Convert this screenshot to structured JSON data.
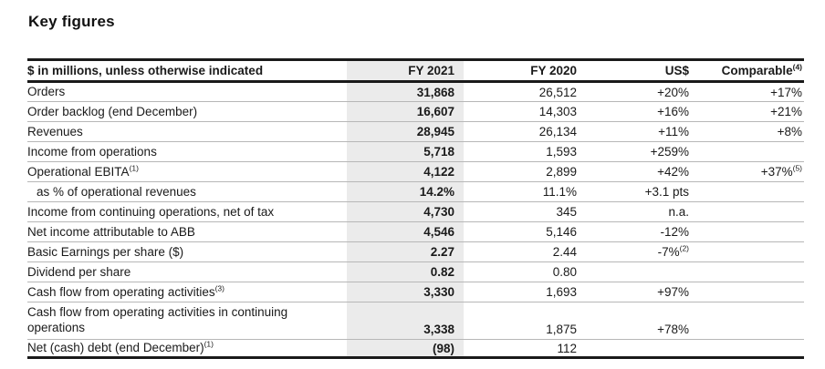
{
  "title": "Key figures",
  "colors": {
    "text": "#1a1a1a",
    "column_highlight": "#ebebeb",
    "row_separator": "#b7b7b7",
    "table_border": "#1a1a1a",
    "background": "#ffffff"
  },
  "table": {
    "unit_note": "$ in millions, unless otherwise indicated",
    "columns": {
      "fy2021": "FY 2021",
      "fy2020": "FY 2020",
      "usd_change": "US$",
      "comparable_change": "Comparable",
      "comparable_footnote": "(4)"
    },
    "rows": [
      {
        "label": "Orders",
        "label_footnote": "",
        "fy2021": "31,868",
        "fy2020": "26,512",
        "usd": "+20%",
        "usd_footnote": "",
        "comparable": "+17%",
        "comparable_footnote": "",
        "indent": false,
        "two_line": false
      },
      {
        "label": "Order backlog (end December)",
        "label_footnote": "",
        "fy2021": "16,607",
        "fy2020": "14,303",
        "usd": "+16%",
        "usd_footnote": "",
        "comparable": "+21%",
        "comparable_footnote": "",
        "indent": false,
        "two_line": false
      },
      {
        "label": "Revenues",
        "label_footnote": "",
        "fy2021": "28,945",
        "fy2020": "26,134",
        "usd": "+11%",
        "usd_footnote": "",
        "comparable": "+8%",
        "comparable_footnote": "",
        "indent": false,
        "two_line": false
      },
      {
        "label": "Income from operations",
        "label_footnote": "",
        "fy2021": "5,718",
        "fy2020": "1,593",
        "usd": "+259%",
        "usd_footnote": "",
        "comparable": "",
        "comparable_footnote": "",
        "indent": false,
        "two_line": false
      },
      {
        "label": "Operational EBITA",
        "label_footnote": "(1)",
        "fy2021": "4,122",
        "fy2020": "2,899",
        "usd": "+42%",
        "usd_footnote": "",
        "comparable": "+37%",
        "comparable_footnote": "(5)",
        "indent": false,
        "two_line": false
      },
      {
        "label": "as % of operational revenues",
        "label_footnote": "",
        "fy2021": "14.2%",
        "fy2020": "11.1%",
        "usd": "+3.1 pts",
        "usd_footnote": "",
        "comparable": "",
        "comparable_footnote": "",
        "indent": true,
        "two_line": false
      },
      {
        "label": "Income from continuing operations, net of tax",
        "label_footnote": "",
        "fy2021": "4,730",
        "fy2020": "345",
        "usd": "n.a.",
        "usd_footnote": "",
        "comparable": "",
        "comparable_footnote": "",
        "indent": false,
        "two_line": false
      },
      {
        "label": "Net income attributable to ABB",
        "label_footnote": "",
        "fy2021": "4,546",
        "fy2020": "5,146",
        "usd": "-12%",
        "usd_footnote": "",
        "comparable": "",
        "comparable_footnote": "",
        "indent": false,
        "two_line": false
      },
      {
        "label": "Basic Earnings per share ($)",
        "label_footnote": "",
        "fy2021": "2.27",
        "fy2020": "2.44",
        "usd": "-7%",
        "usd_footnote": "(2)",
        "comparable": "",
        "comparable_footnote": "",
        "indent": false,
        "two_line": false
      },
      {
        "label": "Dividend per share",
        "label_footnote": "",
        "fy2021": "0.82",
        "fy2020": "0.80",
        "usd": "",
        "usd_footnote": "",
        "comparable": "",
        "comparable_footnote": "",
        "indent": false,
        "two_line": false
      },
      {
        "label": "Cash flow from operating activities",
        "label_footnote": "(3)",
        "fy2021": "3,330",
        "fy2020": "1,693",
        "usd": "+97%",
        "usd_footnote": "",
        "comparable": "",
        "comparable_footnote": "",
        "indent": false,
        "two_line": false
      },
      {
        "label": "Cash flow from operating activities in continuing operations",
        "label_footnote": "",
        "fy2021": "3,338",
        "fy2020": "1,875",
        "usd": "+78%",
        "usd_footnote": "",
        "comparable": "",
        "comparable_footnote": "",
        "indent": false,
        "two_line": true
      },
      {
        "label": "Net (cash) debt (end December)",
        "label_footnote": "(1)",
        "fy2021": "(98)",
        "fy2020": "112",
        "usd": "",
        "usd_footnote": "",
        "comparable": "",
        "comparable_footnote": "",
        "indent": false,
        "two_line": false
      }
    ]
  }
}
